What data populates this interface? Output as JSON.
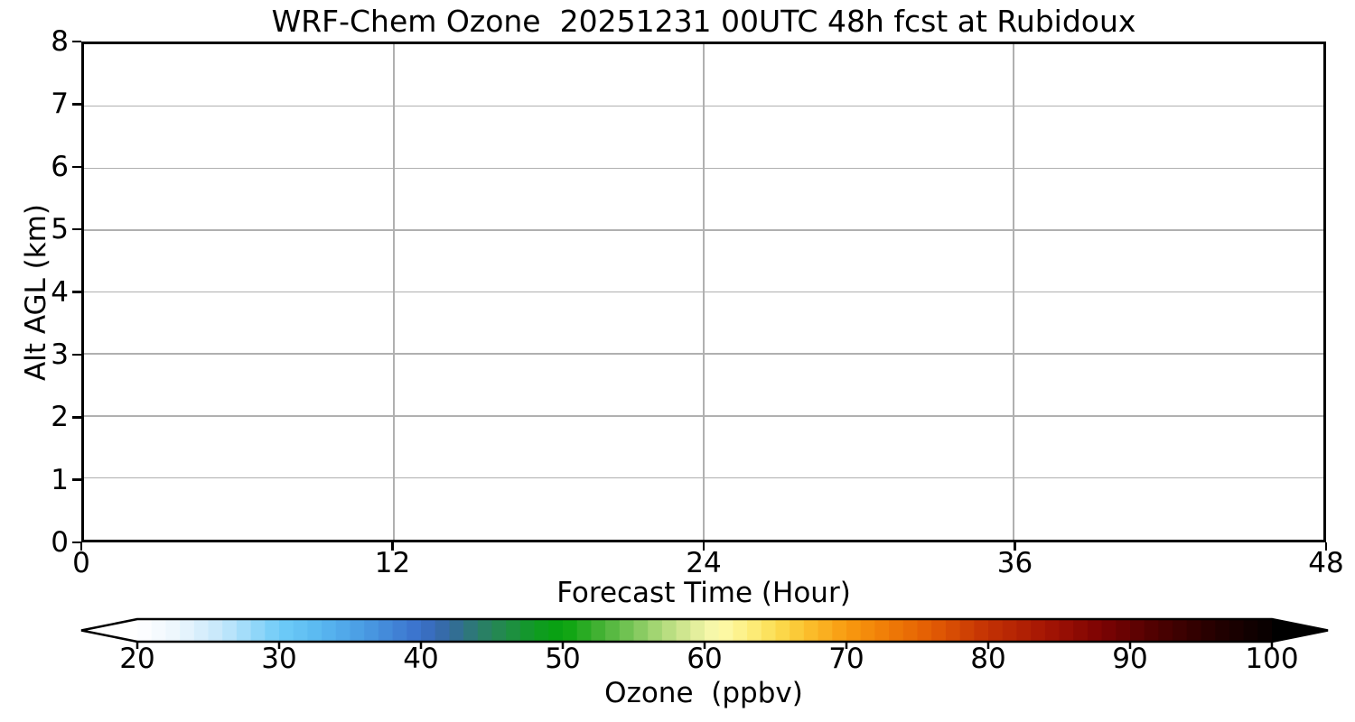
{
  "chart_data": {
    "type": "heatmap",
    "title": "WRF-Chem Ozone  20251231 00UTC 48h fcst at Rubidoux",
    "xlabel": "Forecast Time (Hour)",
    "ylabel": "Alt AGL (km)",
    "xlim": [
      0,
      48
    ],
    "ylim": [
      0,
      8
    ],
    "x_ticks": [
      0,
      12,
      24,
      36,
      48
    ],
    "y_ticks": [
      0,
      1,
      2,
      3,
      4,
      5,
      6,
      7,
      8
    ],
    "grid": true,
    "grid_color": "#b0b0b0",
    "values": [],
    "colorbar": {
      "label": "Ozone  (ppbv)",
      "ticks": [
        20,
        30,
        40,
        50,
        60,
        70,
        80,
        90,
        100
      ],
      "range": [
        20,
        100
      ],
      "segment_step": 1,
      "extend": "both",
      "under_color": "#ffffff",
      "over_color": "#000000",
      "colormap_stops": [
        {
          "value": 20,
          "color": "#ffffff"
        },
        {
          "value": 23,
          "color": "#eaf5fd"
        },
        {
          "value": 26,
          "color": "#c3e7fb"
        },
        {
          "value": 30,
          "color": "#6fccf8"
        },
        {
          "value": 33,
          "color": "#58b7f0"
        },
        {
          "value": 36,
          "color": "#4a9be3"
        },
        {
          "value": 40,
          "color": "#3a6fcb"
        },
        {
          "value": 42,
          "color": "#34699f"
        },
        {
          "value": 44,
          "color": "#2c7c6d"
        },
        {
          "value": 46,
          "color": "#218c48"
        },
        {
          "value": 48,
          "color": "#109b24"
        },
        {
          "value": 50,
          "color": "#06a30d"
        },
        {
          "value": 52,
          "color": "#35ad2a"
        },
        {
          "value": 54,
          "color": "#63bd4a"
        },
        {
          "value": 56,
          "color": "#96d06a"
        },
        {
          "value": 58,
          "color": "#c4e288"
        },
        {
          "value": 60,
          "color": "#eef3a4"
        },
        {
          "value": 61,
          "color": "#fdfbae"
        },
        {
          "value": 63,
          "color": "#fdef82"
        },
        {
          "value": 65,
          "color": "#fcdd52"
        },
        {
          "value": 67,
          "color": "#fbc32f"
        },
        {
          "value": 70,
          "color": "#f89a10"
        },
        {
          "value": 73,
          "color": "#ef7b06"
        },
        {
          "value": 76,
          "color": "#e35c04"
        },
        {
          "value": 80,
          "color": "#c33104"
        },
        {
          "value": 84,
          "color": "#a51504"
        },
        {
          "value": 88,
          "color": "#7c0303"
        },
        {
          "value": 92,
          "color": "#4c0101"
        },
        {
          "value": 96,
          "color": "#240000"
        },
        {
          "value": 100,
          "color": "#060000"
        }
      ]
    }
  }
}
